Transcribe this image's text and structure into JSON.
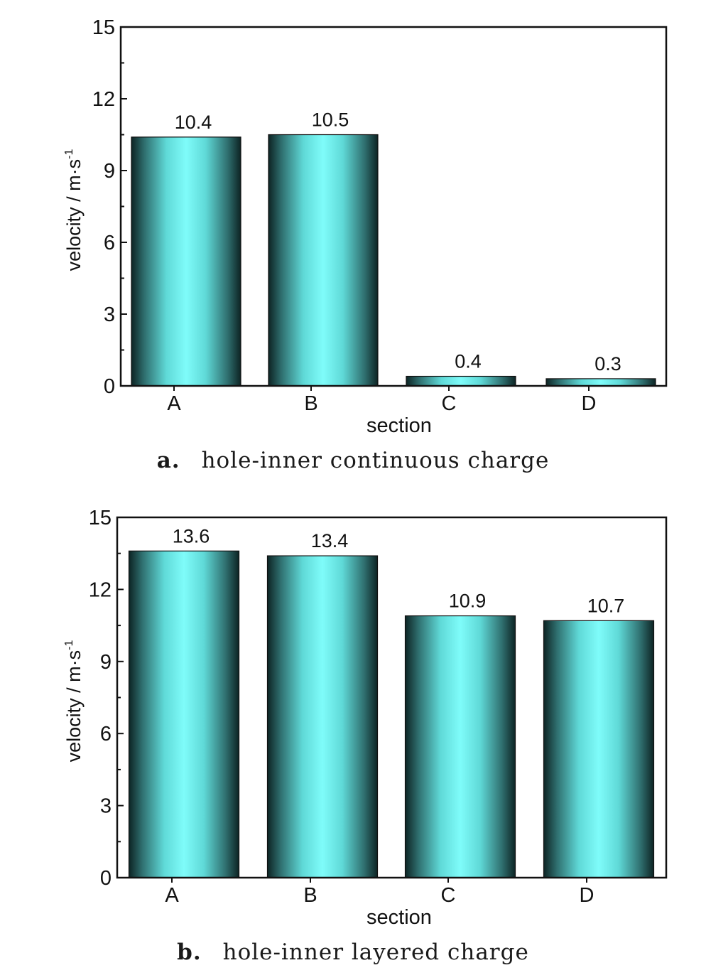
{
  "chart_data": [
    {
      "type": "bar",
      "panel_label": "a.",
      "caption": "hole-inner continuous charge",
      "categories": [
        "A",
        "B",
        "C",
        "D"
      ],
      "values": [
        10.4,
        10.5,
        0.4,
        0.3
      ],
      "data_labels": [
        "10.4",
        "10.5",
        "0.4",
        "0.3"
      ],
      "xlabel": "section",
      "ylabel": "velocity / m·s",
      "ylabel_superscript": "-1",
      "ylim": [
        0,
        15
      ],
      "yticks": [
        0,
        3,
        6,
        9,
        12,
        15
      ],
      "ytick_labels": [
        "0",
        "3",
        "6",
        "9",
        "12",
        "15"
      ],
      "grid": false,
      "bar_color_light": "#7ffcfa",
      "bar_color_dark": "#0d2424"
    },
    {
      "type": "bar",
      "panel_label": "b.",
      "caption": "hole-inner layered charge",
      "categories": [
        "A",
        "B",
        "C",
        "D"
      ],
      "values": [
        13.6,
        13.4,
        10.9,
        10.7
      ],
      "data_labels": [
        "13.6",
        "13.4",
        "10.9",
        "10.7"
      ],
      "xlabel": "section",
      "ylabel": "velocity / m·s",
      "ylabel_superscript": "-1",
      "ylim": [
        0,
        15
      ],
      "yticks": [
        0,
        3,
        6,
        9,
        12,
        15
      ],
      "ytick_labels": [
        "0",
        "3",
        "6",
        "9",
        "12",
        "15"
      ],
      "grid": false,
      "bar_color_light": "#7ffcfa",
      "bar_color_dark": "#0d2424"
    }
  ]
}
